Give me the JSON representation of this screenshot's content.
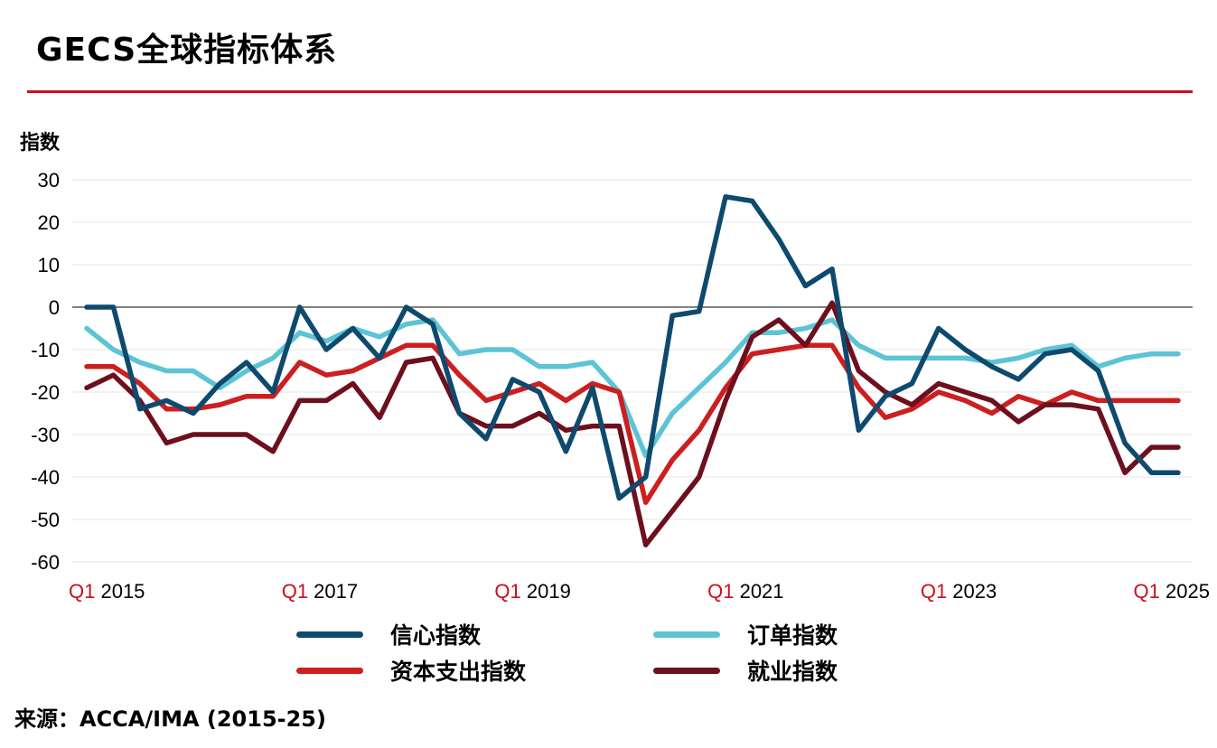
{
  "title": "GECS全球指标体系",
  "ylabel": "指数",
  "source": "来源：ACCA/IMA (2015-25)",
  "colors": {
    "accent": "#c8101e",
    "confidence": "#0e4a6e",
    "orders": "#5cc4d4",
    "capex": "#cc1f1f",
    "employment": "#6e0f1e"
  },
  "chart_data": {
    "type": "line",
    "title": "GECS全球指标体系",
    "ylabel": "指数",
    "xlabel": "",
    "ylim": [
      -60,
      30
    ],
    "yticks": [
      30,
      20,
      10,
      0,
      -10,
      -20,
      -30,
      -40,
      -50,
      -60
    ],
    "grid": true,
    "legend": "bottom",
    "x": [
      "Q1 2015",
      "Q2 2015",
      "Q3 2015",
      "Q4 2015",
      "Q1 2016",
      "Q2 2016",
      "Q3 2016",
      "Q4 2016",
      "Q1 2017",
      "Q2 2017",
      "Q3 2017",
      "Q4 2017",
      "Q1 2018",
      "Q2 2018",
      "Q3 2018",
      "Q4 2018",
      "Q1 2019",
      "Q2 2019",
      "Q3 2019",
      "Q4 2019",
      "Q1 2020",
      "Q2 2020",
      "Q3 2020",
      "Q4 2020",
      "Q1 2021",
      "Q2 2021",
      "Q3 2021",
      "Q4 2021",
      "Q1 2022",
      "Q2 2022",
      "Q3 2022",
      "Q4 2022",
      "Q1 2023",
      "Q2 2023",
      "Q3 2023",
      "Q4 2023",
      "Q1 2024",
      "Q2 2024",
      "Q3 2024",
      "Q4 2024",
      "Q1 2025",
      "Q2 2025"
    ],
    "xticks": [
      {
        "q": "Q1",
        "year": "2015",
        "index": 0
      },
      {
        "q": "Q1",
        "year": "2017",
        "index": 8
      },
      {
        "q": "Q1",
        "year": "2019",
        "index": 16
      },
      {
        "q": "Q1",
        "year": "2021",
        "index": 24
      },
      {
        "q": "Q1",
        "year": "2023",
        "index": 32
      },
      {
        "q": "Q1",
        "year": "2025",
        "index": 40
      }
    ],
    "series": [
      {
        "name": "信心指数",
        "color": "#0e4a6e",
        "values": [
          0,
          0,
          -24,
          -22,
          -25,
          -18,
          -13,
          -20,
          0,
          -10,
          -5,
          -12,
          0,
          -4,
          -25,
          -31,
          -17,
          -20,
          -34,
          -19,
          -45,
          -40,
          -2,
          -1,
          26,
          25,
          16,
          5,
          9,
          -29,
          -21,
          -18,
          -5,
          -10,
          -14,
          -17,
          -11,
          -10,
          -15,
          -32,
          -39,
          -39
        ]
      },
      {
        "name": "订单指数",
        "color": "#5cc4d4",
        "values": [
          -5,
          -10,
          -13,
          -15,
          -15,
          -19,
          -15,
          -12,
          -6,
          -8,
          -5,
          -7,
          -4,
          -3,
          -11,
          -10,
          -10,
          -14,
          -14,
          -13,
          -20,
          -35,
          -25,
          -19,
          -13,
          -6,
          -6,
          -5,
          -3,
          -9,
          -12,
          -12,
          -12,
          -12,
          -13,
          -12,
          -10,
          -9,
          -14,
          -12,
          -11,
          -11
        ]
      },
      {
        "name": "资本支出指数",
        "color": "#cc1f1f",
        "values": [
          -14,
          -14,
          -18,
          -24,
          -24,
          -23,
          -21,
          -21,
          -13,
          -16,
          -15,
          -12,
          -9,
          -9,
          -16,
          -22,
          -20,
          -18,
          -22,
          -18,
          -20,
          -46,
          -36,
          -29,
          -19,
          -11,
          -10,
          -9,
          -9,
          -19,
          -26,
          -24,
          -20,
          -22,
          -25,
          -21,
          -23,
          -20,
          -22,
          -22,
          -22,
          -22
        ]
      },
      {
        "name": "就业指数",
        "color": "#6e0f1e",
        "values": [
          -19,
          -16,
          -22,
          -32,
          -30,
          -30,
          -30,
          -34,
          -22,
          -22,
          -18,
          -26,
          -13,
          -12,
          -25,
          -28,
          -28,
          -25,
          -29,
          -28,
          -28,
          -56,
          -48,
          -40,
          -22,
          -7,
          -3,
          -9,
          1,
          -15,
          -20,
          -23,
          -18,
          -20,
          -22,
          -27,
          -23,
          -23,
          -24,
          -39,
          -33,
          -33
        ]
      }
    ]
  },
  "legend": {
    "items": [
      {
        "label": "信心指数",
        "color": "#0e4a6e"
      },
      {
        "label": "订单指数",
        "color": "#5cc4d4"
      },
      {
        "label": "资本支出指数",
        "color": "#cc1f1f"
      },
      {
        "label": "就业指数",
        "color": "#6e0f1e"
      }
    ]
  }
}
